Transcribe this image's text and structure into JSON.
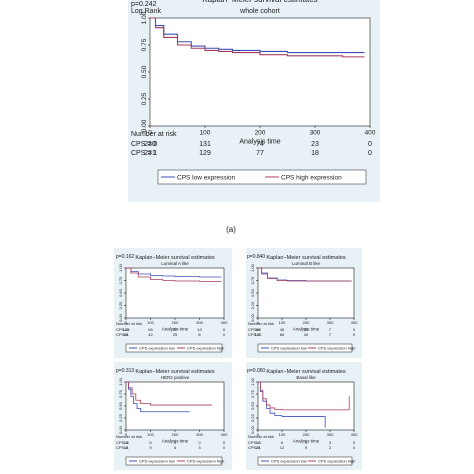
{
  "sublabel_a": "(a)",
  "chart_data": [
    {
      "type": "line",
      "id": "main",
      "title": "Kaplan−Meier survival estimates",
      "subtitle": "whole cohort",
      "pvalue": "p=0.242",
      "test": "Log Rank",
      "xlabel": "Analysis time",
      "xlim": [
        0,
        400
      ],
      "ylim": [
        0,
        1
      ],
      "xticks": [
        0,
        100,
        200,
        300,
        400
      ],
      "yticks": [
        "0.00",
        "0.25",
        "0.50",
        "0.75",
        "1.00"
      ],
      "risk_header": "Number at risk",
      "risk_table": [
        {
          "label": "CPS = 0",
          "values": [
            "230",
            "131",
            "74",
            "23",
            "0"
          ]
        },
        {
          "label": "CPS = 1",
          "values": [
            "231",
            "129",
            "77",
            "18",
            "0"
          ]
        }
      ],
      "series": [
        {
          "name": "CPS low expression",
          "color": "#3c4fb8",
          "x": [
            0,
            10,
            25,
            50,
            75,
            100,
            125,
            150,
            200,
            250,
            300,
            350,
            390
          ],
          "y": [
            1.0,
            0.93,
            0.85,
            0.78,
            0.74,
            0.72,
            0.71,
            0.7,
            0.69,
            0.68,
            0.68,
            0.68,
            0.68
          ]
        },
        {
          "name": "CPS high expression",
          "color": "#a83c5c",
          "x": [
            0,
            10,
            25,
            50,
            75,
            100,
            125,
            150,
            200,
            250,
            300,
            350,
            390
          ],
          "y": [
            1.0,
            0.91,
            0.82,
            0.75,
            0.72,
            0.7,
            0.69,
            0.68,
            0.66,
            0.65,
            0.65,
            0.64,
            0.64
          ]
        }
      ]
    },
    {
      "type": "line",
      "id": "luminal_a",
      "title": "Kaplan−Meier survival estimates",
      "subtitle": "Luminal A like",
      "pvalue": "p=0.162",
      "xlabel": "Analysis time",
      "xlim": [
        0,
        400
      ],
      "ylim": [
        0,
        1
      ],
      "xticks": [
        0,
        100,
        200,
        300,
        400
      ],
      "yticks": [
        "0.00",
        "0.25",
        "0.50",
        "0.75",
        "1.00"
      ],
      "risk_header": "Number at risk",
      "risk_table": [
        {
          "label": "CPS=0",
          "values": [
            "120",
            "65",
            "47",
            "13",
            "0"
          ]
        },
        {
          "label": "CPS=1",
          "values": [
            "86",
            "42",
            "25",
            "8",
            "0"
          ]
        }
      ],
      "series": [
        {
          "name": "CPS expression low",
          "color": "#3c4fb8",
          "x": [
            0,
            20,
            50,
            100,
            150,
            200,
            300,
            390
          ],
          "y": [
            1.0,
            0.93,
            0.88,
            0.85,
            0.84,
            0.83,
            0.82,
            0.82
          ]
        },
        {
          "name": "CPS expression high",
          "color": "#a83c5c",
          "x": [
            0,
            20,
            50,
            100,
            150,
            200,
            300,
            390
          ],
          "y": [
            1.0,
            0.9,
            0.82,
            0.77,
            0.75,
            0.74,
            0.73,
            0.73
          ]
        }
      ]
    },
    {
      "type": "line",
      "id": "luminal_b",
      "title": "Kaplan−Meier survival estimates",
      "subtitle": "Luminal B like",
      "pvalue": "p=0.840",
      "xlabel": "Analysis time",
      "xlim": [
        0,
        400
      ],
      "ylim": [
        0,
        1
      ],
      "xticks": [
        0,
        100,
        200,
        300,
        400
      ],
      "yticks": [
        "0.00",
        "0.25",
        "0.50",
        "0.75",
        "1.00"
      ],
      "risk_header": "Number at risk",
      "risk_table": [
        {
          "label": "CPS=0",
          "values": [
            "80",
            "45",
            "23",
            "7",
            "0"
          ]
        },
        {
          "label": "CPS=1",
          "values": [
            "102",
            "66",
            "40",
            "7",
            "0"
          ]
        }
      ],
      "series": [
        {
          "name": "CPS expression low",
          "color": "#3c4fb8",
          "x": [
            0,
            15,
            40,
            80,
            120,
            200,
            300,
            390
          ],
          "y": [
            1.0,
            0.9,
            0.8,
            0.76,
            0.75,
            0.74,
            0.74,
            0.74
          ]
        },
        {
          "name": "CPS expression high",
          "color": "#a83c5c",
          "x": [
            0,
            15,
            40,
            80,
            120,
            200,
            300,
            390
          ],
          "y": [
            1.0,
            0.88,
            0.79,
            0.75,
            0.74,
            0.74,
            0.74,
            0.74
          ]
        }
      ]
    },
    {
      "type": "line",
      "id": "her2",
      "title": "Kaplan−Meier survival estimates",
      "subtitle": "HER2 positive",
      "pvalue": "p=0.313",
      "xlabel": "Analysis time",
      "xlim": [
        0,
        400
      ],
      "ylim": [
        0,
        1
      ],
      "xticks": [
        0,
        100,
        200,
        300,
        400
      ],
      "yticks": [
        "0.00",
        "0.25",
        "0.50",
        "0.75",
        "1.00"
      ],
      "risk_header": "Number at risk",
      "risk_table": [
        {
          "label": "CPS=0",
          "values": [
            "13",
            "5",
            "3",
            "0",
            "0"
          ]
        },
        {
          "label": "CPS=1",
          "values": [
            "18",
            "9",
            "5",
            "3",
            "0"
          ]
        }
      ],
      "series": [
        {
          "name": "CPS expression low",
          "color": "#3c4fb8",
          "x": [
            0,
            10,
            20,
            30,
            45,
            60,
            100,
            200,
            260
          ],
          "y": [
            1.0,
            0.85,
            0.7,
            0.55,
            0.45,
            0.38,
            0.38,
            0.38,
            0.38
          ]
        },
        {
          "name": "CPS expression high",
          "color": "#a83c5c",
          "x": [
            0,
            10,
            25,
            40,
            60,
            100,
            200,
            300,
            350
          ],
          "y": [
            1.0,
            0.88,
            0.75,
            0.62,
            0.55,
            0.52,
            0.52,
            0.52,
            0.52
          ]
        }
      ]
    },
    {
      "type": "line",
      "id": "basal",
      "title": "Kaplan−Meier survival estimates",
      "subtitle": "Basal like",
      "pvalue": "p=0.050",
      "xlabel": "Analysis time",
      "xlim": [
        0,
        400
      ],
      "ylim": [
        0,
        1
      ],
      "xticks": [
        0,
        100,
        200,
        300,
        400
      ],
      "yticks": [
        "0.00",
        "0.25",
        "0.50",
        "0.75",
        "1.00"
      ],
      "risk_header": "Number at risk",
      "risk_table": [
        {
          "label": "CPS=0",
          "values": [
            "17",
            "6",
            "3",
            "3",
            "0"
          ]
        },
        {
          "label": "CPS=1",
          "values": [
            "25",
            "12",
            "9",
            "2",
            "0"
          ]
        }
      ],
      "series": [
        {
          "name": "CPS expression low",
          "color": "#3c4fb8",
          "x": [
            0,
            10,
            20,
            35,
            50,
            70,
            100,
            150,
            200,
            240,
            270,
            280
          ],
          "y": [
            1.0,
            0.8,
            0.6,
            0.45,
            0.35,
            0.3,
            0.28,
            0.28,
            0.28,
            0.28,
            0.28,
            0.05
          ]
        },
        {
          "name": "CPS expression high",
          "color": "#a83c5c",
          "x": [
            0,
            10,
            20,
            35,
            50,
            70,
            100,
            150,
            200,
            300,
            360,
            380
          ],
          "y": [
            1.0,
            0.82,
            0.65,
            0.52,
            0.46,
            0.43,
            0.42,
            0.42,
            0.42,
            0.42,
            0.42,
            0.7
          ]
        }
      ]
    }
  ]
}
